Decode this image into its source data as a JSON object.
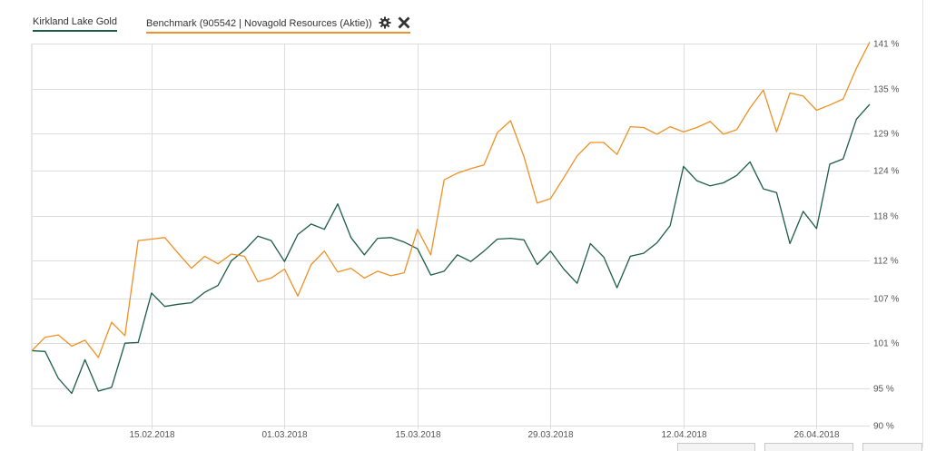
{
  "legend": {
    "series1_label": "Kirkland Lake Gold",
    "series2_label": "Benchmark (905542 | Novagold Resources (Aktie))",
    "settings_icon": "gear-icon",
    "close_icon": "close-icon"
  },
  "colors": {
    "kirkland": "#1d5c45",
    "benchmark": "#ef9124",
    "grid": "#dddddd"
  },
  "chart_data": {
    "type": "line",
    "ylim": [
      90,
      141
    ],
    "y_ticks": [
      {
        "value": 141,
        "label": "141 %"
      },
      {
        "value": 135,
        "label": "135 %"
      },
      {
        "value": 129,
        "label": "129 %"
      },
      {
        "value": 124,
        "label": "124 %"
      },
      {
        "value": 118,
        "label": "118 %"
      },
      {
        "value": 112,
        "label": "112 %"
      },
      {
        "value": 107,
        "label": "107 %"
      },
      {
        "value": 101,
        "label": "101 %"
      },
      {
        "value": 95,
        "label": "95 %"
      },
      {
        "value": 90,
        "label": "90 %"
      }
    ],
    "x_ticks": [
      "15.02.2018",
      "01.03.2018",
      "15.03.2018",
      "29.03.2018",
      "12.04.2018",
      "26.04.2018"
    ],
    "x_tick_index": [
      9,
      19,
      29,
      39,
      49,
      59
    ],
    "grid": true,
    "series": [
      {
        "name": "Kirkland Lake Gold",
        "values": [
          100,
          99.9,
          96.3,
          94.3,
          98.8,
          94.6,
          95.1,
          101.0,
          101.1,
          107.7,
          105.9,
          106.2,
          106.4,
          107.8,
          108.7,
          112.0,
          113.4,
          115.3,
          114.7,
          111.9,
          115.5,
          116.9,
          116.2,
          119.6,
          115.1,
          112.8,
          115.0,
          115.1,
          114.5,
          113.6,
          110.1,
          110.6,
          112.8,
          111.9,
          113.3,
          114.9,
          115.0,
          114.8,
          111.5,
          113.3,
          110.9,
          109.0,
          114.3,
          112.5,
          108.4,
          112.6,
          113.0,
          114.4,
          116.7,
          124.6,
          122.7,
          122.0,
          122.4,
          123.4,
          125.2,
          121.6,
          121.1,
          114.3,
          118.6,
          116.3,
          124.9,
          125.6,
          130.9,
          132.9
        ]
      },
      {
        "name": "Benchmark (905542 | Novagold Resources (Aktie))",
        "values": [
          100,
          101.8,
          102.1,
          100.6,
          101.4,
          99.1,
          103.8,
          102.0,
          114.7,
          114.9,
          115.1,
          113.0,
          111.0,
          112.6,
          111.6,
          112.9,
          112.6,
          109.2,
          109.7,
          110.9,
          107.3,
          111.5,
          113.3,
          110.5,
          111.0,
          109.7,
          110.6,
          110.0,
          110.4,
          116.2,
          112.8,
          122.8,
          123.7,
          124.3,
          124.8,
          129.1,
          130.7,
          125.9,
          119.7,
          120.3,
          123.1,
          126.0,
          127.8,
          127.8,
          126.2,
          129.9,
          129.8,
          128.9,
          129.9,
          129.2,
          129.8,
          130.6,
          128.9,
          129.5,
          132.4,
          134.8,
          129.2,
          134.4,
          134.0,
          132.1,
          132.8,
          133.6,
          137.7,
          141.2
        ]
      }
    ]
  }
}
